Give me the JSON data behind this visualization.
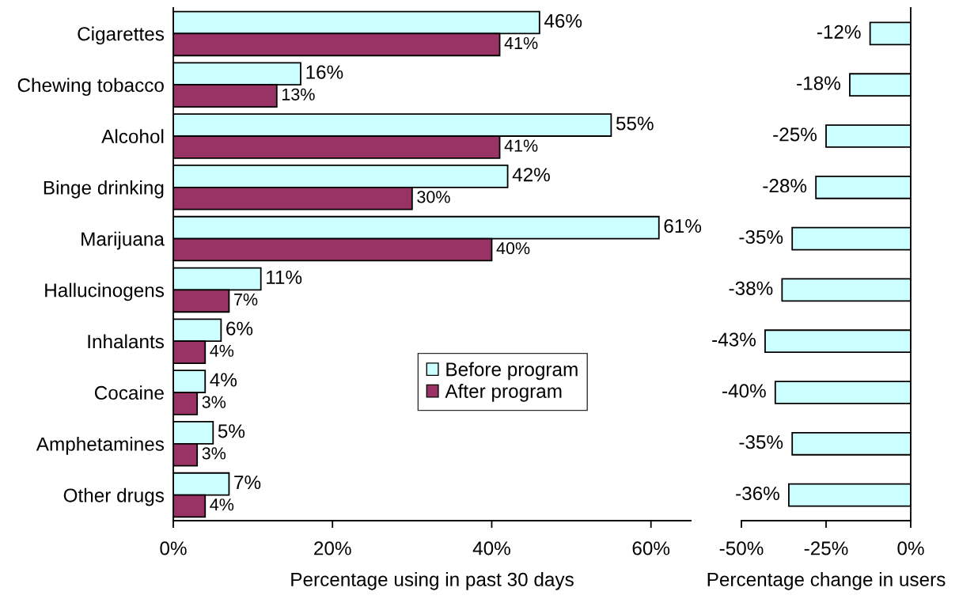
{
  "chart_data": [
    {
      "type": "bar",
      "orientation": "horizontal",
      "categories": [
        "Cigarettes",
        "Chewing tobacco",
        "Alcohol",
        "Binge drinking",
        "Marijuana",
        "Hallucinogens",
        "Inhalants",
        "Cocaine",
        "Amphetamines",
        "Other drugs"
      ],
      "series": [
        {
          "name": "Before program",
          "color": "#ccffff",
          "values": [
            46,
            16,
            55,
            42,
            61,
            11,
            6,
            4,
            5,
            7
          ],
          "value_labels": [
            "46%",
            "16%",
            "55%",
            "42%",
            "61%",
            "11%",
            "6%",
            "4%",
            "5%",
            "7%"
          ]
        },
        {
          "name": "After program",
          "color": "#993366",
          "values": [
            41,
            13,
            41,
            30,
            40,
            7,
            4,
            3,
            3,
            4
          ],
          "value_labels": [
            "41%",
            "13%",
            "41%",
            "30%",
            "40%",
            "7%",
            "4%",
            "3%",
            "3%",
            "4%"
          ]
        }
      ],
      "xlabel": "Percentage using in past 30 days",
      "xlim": [
        0,
        65
      ],
      "xticks": [
        {
          "value": 0,
          "label": "0%"
        },
        {
          "value": 20,
          "label": "20%"
        },
        {
          "value": 40,
          "label": "40%"
        },
        {
          "value": 60,
          "label": "60%"
        }
      ],
      "legend": "bottom right"
    },
    {
      "type": "bar",
      "orientation": "horizontal",
      "categories": [
        null,
        null,
        null,
        null,
        null,
        null,
        null,
        null,
        null,
        null
      ],
      "series": [
        {
          "color": "#ccffff",
          "values": [
            -12,
            -18,
            -25,
            -28,
            -35,
            -38,
            -43,
            -40,
            -35,
            -36
          ],
          "value_labels": [
            "-12%",
            "-18%",
            "-25%",
            "-28%",
            "-35%",
            "-38%",
            "-43%",
            "-40%",
            "-35%",
            "-36%"
          ]
        }
      ],
      "xlabel": "Percentage change in users",
      "xlim": [
        -50,
        0
      ],
      "xticks": [
        {
          "value": -50,
          "label": "-50%"
        },
        {
          "value": -25,
          "label": "-25%"
        },
        {
          "value": 0,
          "label": "0%"
        }
      ]
    }
  ]
}
